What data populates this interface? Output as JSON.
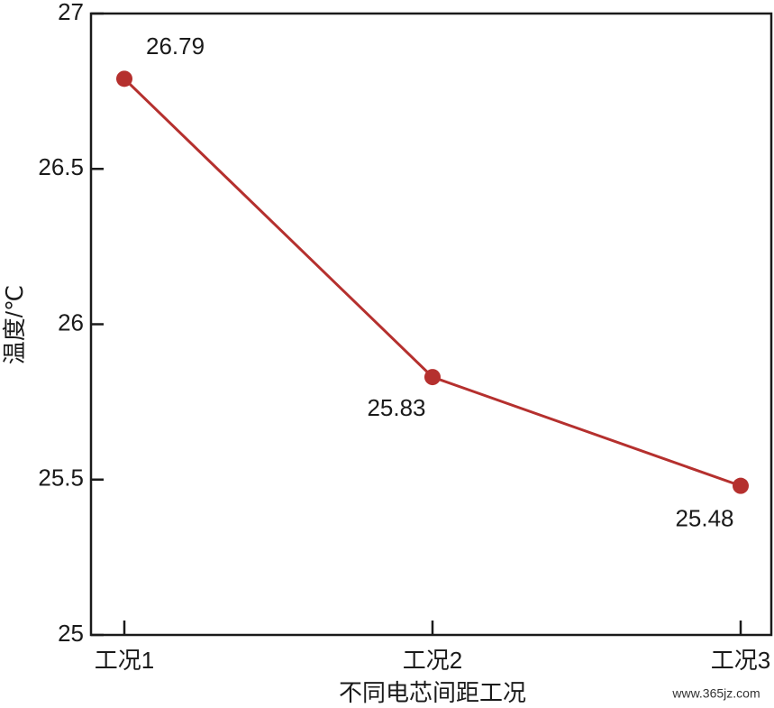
{
  "chart_data": {
    "type": "line",
    "categories": [
      "工况1",
      "工况2",
      "工况3"
    ],
    "series": [
      {
        "name": "温度",
        "color": "#b5302e",
        "values": [
          26.79,
          25.83,
          25.48
        ]
      }
    ],
    "ylim": [
      25,
      27
    ],
    "yticks": [
      25,
      25.5,
      26,
      26.5,
      27
    ],
    "y_label": "温度/℃",
    "x_label": "不同电芯间距工况",
    "watermark": "www.365jz.com"
  }
}
